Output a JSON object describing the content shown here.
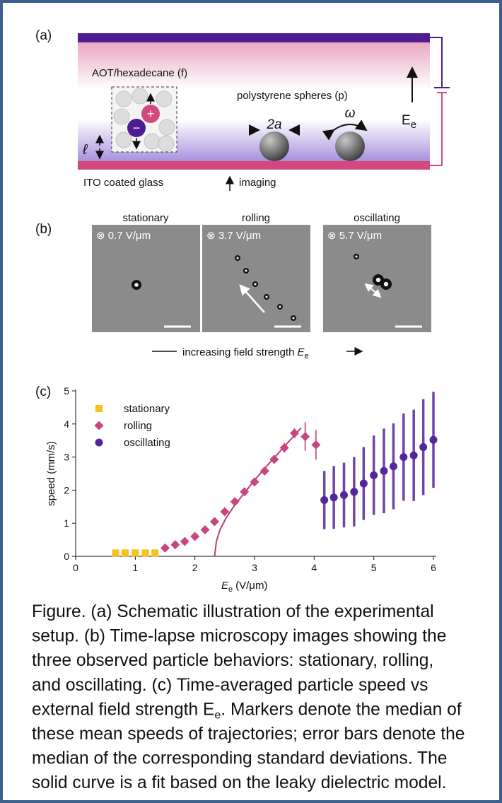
{
  "panel_a": {
    "label": "(a)",
    "medium": "AOT/hexadecane (f)",
    "particles": "polystyrene spheres (p)",
    "diameter": "2a",
    "omega": "ω",
    "field": {
      "symbol": "E",
      "subscript": "e"
    },
    "length": "ℓ",
    "electrode": "ITO coated glass",
    "imaging": "imaging",
    "plus": "+",
    "minus": "−"
  },
  "panel_b": {
    "label": "(b)",
    "images": [
      {
        "title": "stationary",
        "field": "⊗ 0.7 V/μm"
      },
      {
        "title": "rolling",
        "field": "⊗ 3.7 V/μm"
      },
      {
        "title": "oscillating",
        "field": "⊗ 5.7 V/μm"
      }
    ],
    "axis": {
      "text": "increasing field strength",
      "symbol": "E",
      "subscript": "e"
    }
  },
  "panel_c": {
    "label": "(c)"
  },
  "chart_data": {
    "type": "scatter",
    "ylabel": "speed (mm/s)",
    "xlabel": {
      "symbol": "E",
      "subscript": "e",
      "unit": "(V/μm)"
    },
    "xlim": [
      0,
      6
    ],
    "xticks": [
      0,
      1,
      2,
      3,
      4,
      5,
      6
    ],
    "ylim": [
      0,
      5
    ],
    "yticks": [
      0,
      1,
      2,
      3,
      4,
      5
    ],
    "legend": "upper left",
    "series": [
      {
        "name": "stationary",
        "color": "#f6c31c",
        "marker": "square",
        "x": [
          0.67,
          0.83,
          1.0,
          1.17,
          1.33
        ],
        "values": [
          0.1,
          0.1,
          0.1,
          0.1,
          0.1
        ]
      },
      {
        "name": "rolling",
        "color": "#c9457f",
        "marker": "diamond",
        "x": [
          1.5,
          1.67,
          1.83,
          2.0,
          2.17,
          2.33,
          2.5,
          2.67,
          2.83,
          3.0,
          3.17,
          3.33,
          3.5,
          3.67,
          3.85,
          4.03
        ],
        "values": [
          0.25,
          0.35,
          0.45,
          0.6,
          0.8,
          1.05,
          1.35,
          1.65,
          1.95,
          2.25,
          2.58,
          2.93,
          3.28,
          3.72,
          3.62,
          3.37
        ],
        "errors": [
          0.04,
          0.04,
          0.05,
          0.05,
          0.06,
          0.07,
          0.08,
          0.09,
          0.1,
          0.1,
          0.12,
          0.12,
          0.15,
          0.15,
          0.43,
          0.45
        ]
      },
      {
        "name": "oscillating",
        "color": "#55269a",
        "marker": "circle",
        "x": [
          4.17,
          4.33,
          4.5,
          4.67,
          4.83,
          5.0,
          5.17,
          5.33,
          5.5,
          5.67,
          5.83,
          6.0
        ],
        "values": [
          1.7,
          1.78,
          1.85,
          1.95,
          2.2,
          2.45,
          2.58,
          2.72,
          3.0,
          3.05,
          3.3,
          3.52
        ],
        "errors": [
          0.88,
          0.95,
          0.98,
          1.05,
          1.1,
          1.2,
          1.28,
          1.3,
          1.32,
          1.38,
          1.45,
          1.45
        ]
      }
    ],
    "fit": {
      "type": "line",
      "color": "#c03a7a",
      "x": [
        2.33,
        2.36,
        2.42,
        2.52,
        2.65,
        2.8,
        3.0,
        3.2,
        3.4,
        3.6,
        3.78
      ],
      "values": [
        0.0,
        0.45,
        0.8,
        1.15,
        1.5,
        1.85,
        2.3,
        2.72,
        3.12,
        3.52,
        3.88
      ]
    }
  },
  "caption": {
    "lines": [
      "Figure. (a) Schematic illustration of the experimental",
      "setup. (b) Time-lapse microscopy images showing the",
      "three observed particle behaviors: stationary, rolling,",
      "and oscillating. (c) Time-averaged particle speed vs",
      "external field strength E",
      "these mean speeds of trajectories; error bars denote the",
      "median of the corresponding standard deviations. The",
      "solid curve is a fit based on the leaky dielectric model."
    ],
    "subscript": "e",
    "line_rest": ". Markers denote the median of"
  }
}
